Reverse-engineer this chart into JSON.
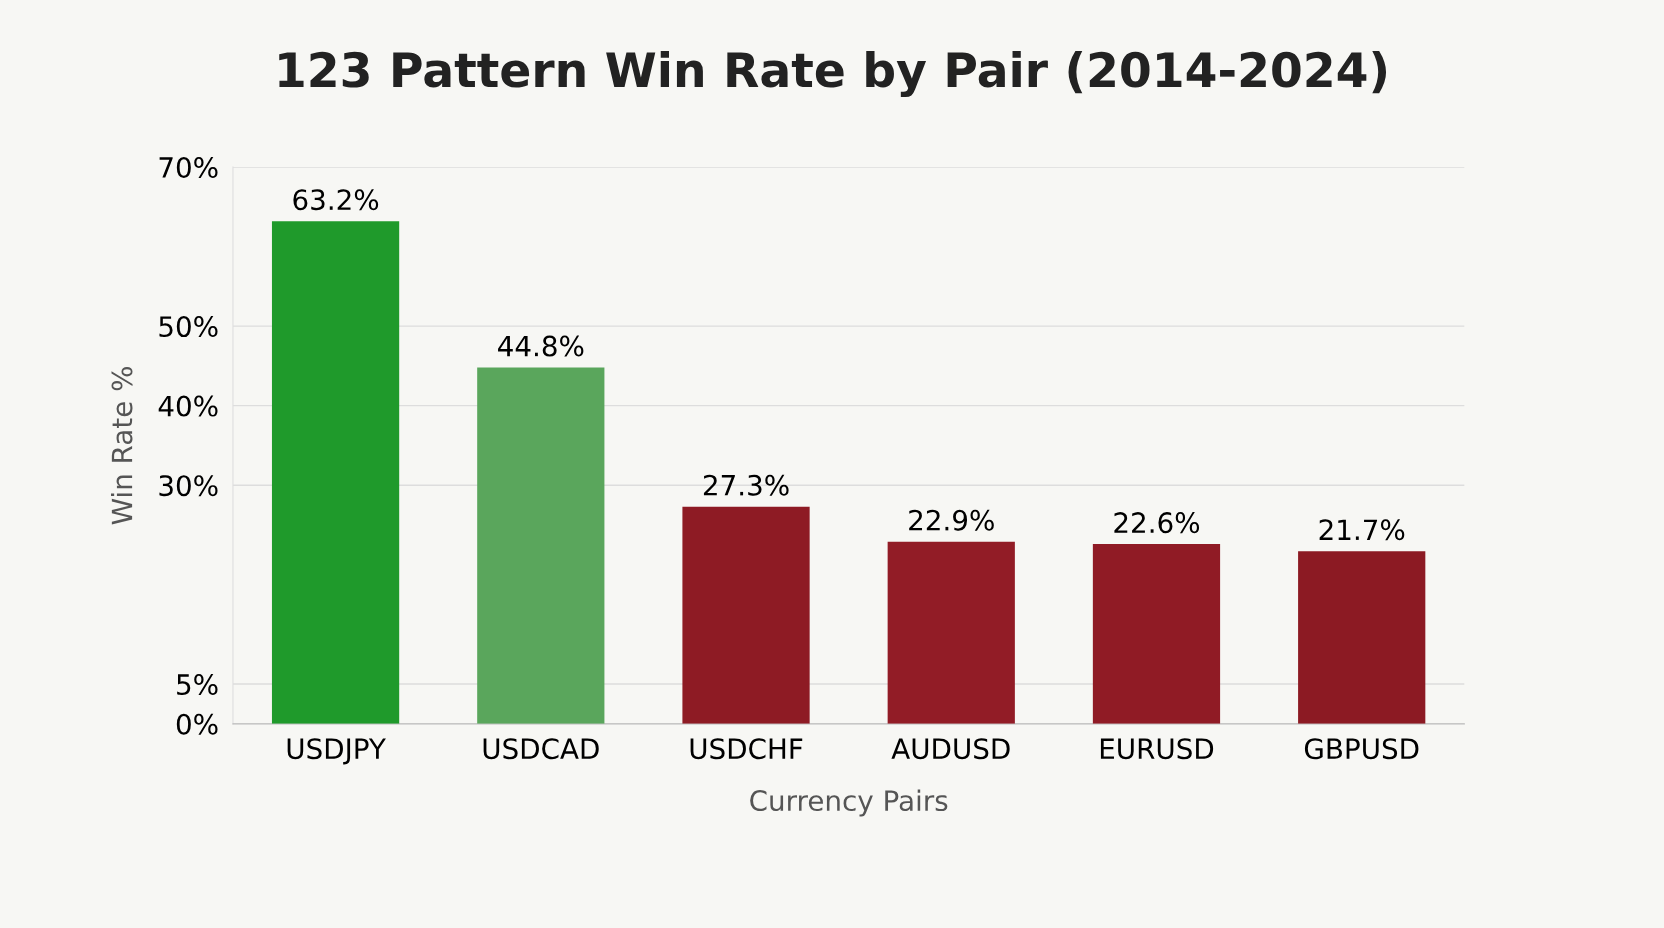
{
  "chart_data": {
    "type": "bar",
    "title": "123 Pattern Win Rate by Pair (2014-2024)",
    "xlabel": "Currency Pairs",
    "ylabel": "Win Rate %",
    "categories": [
      "USDJPY",
      "USDCAD",
      "USDCHF",
      "AUDUSD",
      "EURUSD",
      "GBPUSD"
    ],
    "values": [
      63.2,
      44.8,
      27.3,
      22.9,
      22.6,
      21.7
    ],
    "colors": [
      "#1f9a2b",
      "#5aa65c",
      "#8e1b24",
      "#921c26",
      "#901b25",
      "#8c1a23"
    ],
    "value_labels": [
      "63.2%",
      "44.8%",
      "27.3%",
      "22.9%",
      "22.6%",
      "21.7%"
    ],
    "ylim": [
      0,
      70
    ],
    "yticks": [
      {
        "value": 0,
        "label": "0%"
      },
      {
        "value": 5,
        "label": "5%"
      },
      {
        "value": 30,
        "label": "30%"
      },
      {
        "value": 40,
        "label": "40%"
      },
      {
        "value": 50,
        "label": "50%"
      },
      {
        "value": 70,
        "label": "70%"
      }
    ],
    "grid": "y"
  }
}
